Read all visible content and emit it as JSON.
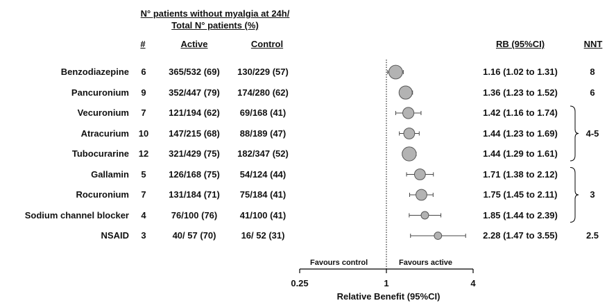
{
  "chart_data": {
    "type": "forest",
    "header": {
      "line1": "N° patients without myalgia at 24h/",
      "line2": "Total N° patients (%)",
      "num_label": "#",
      "active_label": "Active",
      "control_label": "Control",
      "rb_label": "RB (95%CI)",
      "nnt_label": "NNT"
    },
    "rows": [
      {
        "name": "Benzodiazepine",
        "n": "6",
        "active": "365/532 (69)",
        "control": "130/229 (57)",
        "rb_text": "1.16 (1.02 to 1.31)",
        "rb": 1.16,
        "lo": 1.02,
        "hi": 1.31,
        "weight": 0.82
      },
      {
        "name": "Pancuronium",
        "n": "9",
        "active": "352/447 (79)",
        "control": "174/280 (62)",
        "rb_text": "1.36 (1.23 to 1.52)",
        "rb": 1.36,
        "lo": 1.23,
        "hi": 1.52,
        "weight": 0.78
      },
      {
        "name": "Vecuronium",
        "n": "7",
        "active": "121/194 (62)",
        "control": "69/168 (41)",
        "rb_text": "1.42 (1.16 to 1.74)",
        "rb": 1.42,
        "lo": 1.16,
        "hi": 1.74,
        "weight": 0.62
      },
      {
        "name": "Atracurium",
        "n": "10",
        "active": "147/215 (68)",
        "control": "88/189 (47)",
        "rb_text": "1.44 (1.23 to 1.69)",
        "rb": 1.44,
        "lo": 1.23,
        "hi": 1.69,
        "weight": 0.6
      },
      {
        "name": "Tubocurarine",
        "n": "12",
        "active": "321/429 (75)",
        "control": "182/347 (52)",
        "rb_text": "1.44 (1.29 to 1.61)",
        "rb": 1.44,
        "lo": 1.29,
        "hi": 1.61,
        "weight": 0.85
      },
      {
        "name": "Gallamin",
        "n": "5",
        "active": "126/168 (75)",
        "control": "54/124 (44)",
        "rb_text": "1.71 (1.38 to 2.12)",
        "rb": 1.71,
        "lo": 1.38,
        "hi": 2.12,
        "weight": 0.6
      },
      {
        "name": "Rocuronium",
        "n": "7",
        "active": "131/184 (71)",
        "control": "75/184 (41)",
        "rb_text": "1.75 (1.45 to 2.11)",
        "rb": 1.75,
        "lo": 1.45,
        "hi": 2.11,
        "weight": 0.6
      },
      {
        "name": "Sodium channel blocker",
        "n": "4",
        "active": "76/100 (76)",
        "control": "41/100 (41)",
        "rb_text": "1.85 (1.44 to 2.39)",
        "rb": 1.85,
        "lo": 1.44,
        "hi": 2.39,
        "weight": 0.33
      },
      {
        "name": "NSAID",
        "n": "3",
        "active": "40/ 57 (70)",
        "control": "16/ 52 (31)",
        "rb_text": "2.28 (1.47 to 3.55)",
        "rb": 2.28,
        "lo": 1.47,
        "hi": 3.55,
        "weight": 0.32
      }
    ],
    "nnt_groups": [
      {
        "label": "8",
        "rows": [
          0
        ]
      },
      {
        "label": "6",
        "rows": [
          1
        ]
      },
      {
        "label": "4-5",
        "rows": [
          2,
          3,
          4
        ],
        "brace": true
      },
      {
        "label": "3",
        "rows": [
          5,
          6,
          7
        ],
        "brace": true
      },
      {
        "label": "2.5",
        "rows": [
          8
        ]
      }
    ],
    "axis": {
      "scale": "log",
      "ticks": [
        0.25,
        1,
        4
      ],
      "tick_labels": [
        "0.25",
        "1",
        "4"
      ],
      "xlim": [
        0.25,
        4
      ],
      "reference": 1,
      "xlabel": "Relative Benefit (95%CI)",
      "favours_left": "Favours control",
      "favours_right": "Favours active"
    },
    "colors": {
      "marker_fill": "#b3b3b3",
      "marker_stroke": "#555555",
      "line": "#444444"
    }
  }
}
